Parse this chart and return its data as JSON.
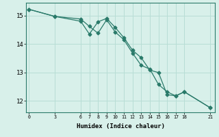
{
  "title": "",
  "xlabel": "Humidex (Indice chaleur)",
  "ylabel": "",
  "background_color": "#d8f0ea",
  "grid_color": "#b8ddd5",
  "line_color": "#2a7a6a",
  "xlim": [
    -0.3,
    21.5
  ],
  "ylim": [
    11.6,
    15.45
  ],
  "xticks": [
    0,
    3,
    6,
    7,
    8,
    9,
    10,
    11,
    12,
    13,
    14,
    15,
    16,
    17,
    18,
    21
  ],
  "yticks": [
    12,
    13,
    14,
    15
  ],
  "line1_x": [
    0,
    3,
    6,
    7,
    8,
    9,
    10,
    11,
    12,
    13,
    14,
    15,
    16,
    17,
    18,
    21
  ],
  "line1_y": [
    15.22,
    14.97,
    14.8,
    14.35,
    14.78,
    14.9,
    14.58,
    14.22,
    13.78,
    13.52,
    13.08,
    13.0,
    12.22,
    12.18,
    12.32,
    11.76
  ],
  "line2_x": [
    0,
    3,
    6,
    7,
    8,
    9,
    10,
    11,
    12,
    13,
    14,
    15,
    16,
    17,
    18,
    21
  ],
  "line2_y": [
    15.22,
    14.97,
    14.88,
    14.62,
    14.38,
    14.85,
    14.42,
    14.15,
    13.68,
    13.25,
    13.12,
    12.58,
    12.32,
    12.18,
    12.32,
    11.76
  ],
  "marker": "D",
  "markersize": 2.5,
  "linewidth": 0.9
}
